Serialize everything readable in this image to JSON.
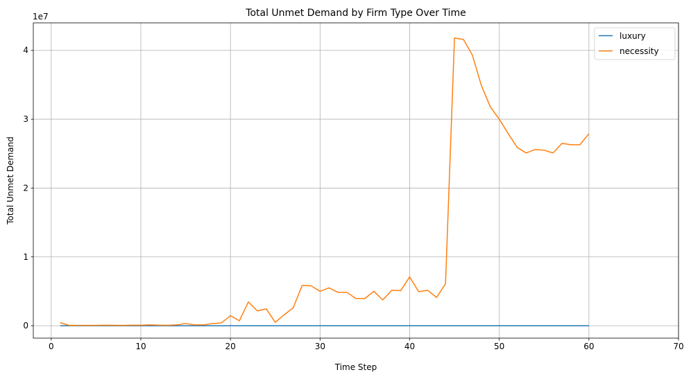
{
  "chart_data": {
    "type": "line",
    "title": "Total Unmet Demand by Firm Type Over Time",
    "xlabel": "Time Step",
    "ylabel": "Total Unmet Demand",
    "y_multiplier_label": "1e7",
    "xlim": [
      -2,
      70
    ],
    "ylim": [
      -1.8,
      44
    ],
    "x_ticks": [
      0,
      10,
      20,
      30,
      40,
      50,
      60,
      70
    ],
    "y_ticks": [
      0,
      1,
      2,
      3,
      4
    ],
    "grid": true,
    "legend_position": "top-right",
    "series": [
      {
        "name": "luxury",
        "color": "#1f77b4",
        "x": [
          1,
          2,
          3,
          4,
          5,
          6,
          7,
          8,
          9,
          10,
          11,
          12,
          13,
          14,
          15,
          16,
          17,
          18,
          19,
          20,
          21,
          22,
          23,
          24,
          25,
          26,
          27,
          28,
          29,
          30,
          31,
          32,
          33,
          34,
          35,
          36,
          37,
          38,
          39,
          40,
          41,
          42,
          43,
          44,
          45,
          46,
          47,
          48,
          49,
          50,
          51,
          52,
          53,
          54,
          55,
          56,
          57,
          58,
          59,
          60
        ],
        "values": [
          0,
          0,
          0,
          0,
          0,
          0,
          0,
          0,
          0,
          0,
          0,
          0,
          0,
          0,
          0,
          0,
          0,
          0,
          0,
          0,
          0,
          0,
          0,
          0,
          0,
          0,
          0,
          0,
          0,
          0,
          0,
          0,
          0,
          0,
          0,
          0,
          0,
          0,
          0,
          0,
          0,
          0,
          0,
          0,
          0,
          0,
          0,
          0,
          0,
          0,
          0,
          0,
          0,
          0,
          0,
          0,
          0,
          0,
          0,
          0
        ]
      },
      {
        "name": "necessity",
        "color": "#ff7f0e",
        "x": [
          1,
          2,
          3,
          4,
          5,
          6,
          7,
          8,
          9,
          10,
          11,
          12,
          13,
          14,
          15,
          16,
          17,
          18,
          19,
          20,
          21,
          22,
          23,
          24,
          25,
          26,
          27,
          28,
          29,
          30,
          31,
          32,
          33,
          34,
          35,
          36,
          37,
          38,
          39,
          40,
          41,
          42,
          43,
          44,
          45,
          46,
          47,
          48,
          49,
          50,
          51,
          52,
          53,
          54,
          55,
          56,
          57,
          58,
          59,
          60
        ],
        "values": [
          0.45,
          0.05,
          0.05,
          0.05,
          0.05,
          0.08,
          0.06,
          0.05,
          0.08,
          0.08,
          0.12,
          0.08,
          0.06,
          0.12,
          0.32,
          0.13,
          0.13,
          0.32,
          0.42,
          1.45,
          0.72,
          3.45,
          2.15,
          2.45,
          0.5,
          1.6,
          2.6,
          5.85,
          5.8,
          5.0,
          5.5,
          4.85,
          4.85,
          3.95,
          3.95,
          5.0,
          3.75,
          5.15,
          5.1,
          7.1,
          4.95,
          5.15,
          4.1,
          6.1,
          41.8,
          41.6,
          39.3,
          34.9,
          31.8,
          30.0,
          27.9,
          25.9,
          25.1,
          25.6,
          25.5,
          25.1,
          26.5,
          26.3,
          26.3,
          27.9
        ]
      }
    ]
  }
}
